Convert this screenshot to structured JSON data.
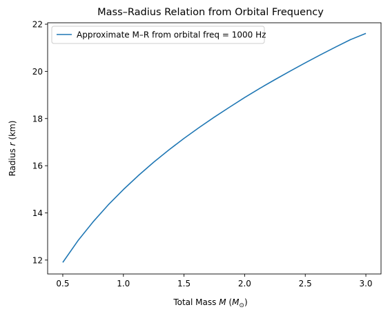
{
  "chart_data": {
    "type": "line",
    "title": "Mass–Radius Relation from Orbital Frequency",
    "xlabel_parts": [
      "Total Mass ",
      "M",
      " (",
      "M",
      "⊙",
      ")"
    ],
    "ylabel_parts": [
      "Radius ",
      "r",
      " (km)"
    ],
    "xlim": [
      0.375,
      3.125
    ],
    "ylim": [
      11.41,
      22.06
    ],
    "x_ticks": [
      0.5,
      1.0,
      1.5,
      2.0,
      2.5,
      3.0
    ],
    "x_tick_labels": [
      "0.5",
      "1.0",
      "1.5",
      "2.0",
      "2.5",
      "3.0"
    ],
    "y_ticks": [
      12,
      14,
      16,
      18,
      20,
      22
    ],
    "y_tick_labels": [
      "12",
      "14",
      "16",
      "18",
      "20",
      "22"
    ],
    "grid": false,
    "legend_position": "top-left",
    "series": [
      {
        "name": "Approximate M–R from orbital freq = 1000 Hz",
        "color": "#1f77b4",
        "x": [
          0.5,
          0.625,
          0.75,
          0.875,
          1.0,
          1.125,
          1.25,
          1.375,
          1.5,
          1.625,
          1.75,
          1.875,
          2.0,
          2.125,
          2.25,
          2.375,
          2.5,
          2.625,
          2.75,
          2.875,
          3.0
        ],
        "y": [
          11.9,
          12.82,
          13.62,
          14.34,
          14.99,
          15.59,
          16.15,
          16.67,
          17.16,
          17.62,
          18.06,
          18.48,
          18.89,
          19.28,
          19.65,
          20.01,
          20.36,
          20.7,
          21.03,
          21.35,
          21.61
        ]
      }
    ]
  }
}
